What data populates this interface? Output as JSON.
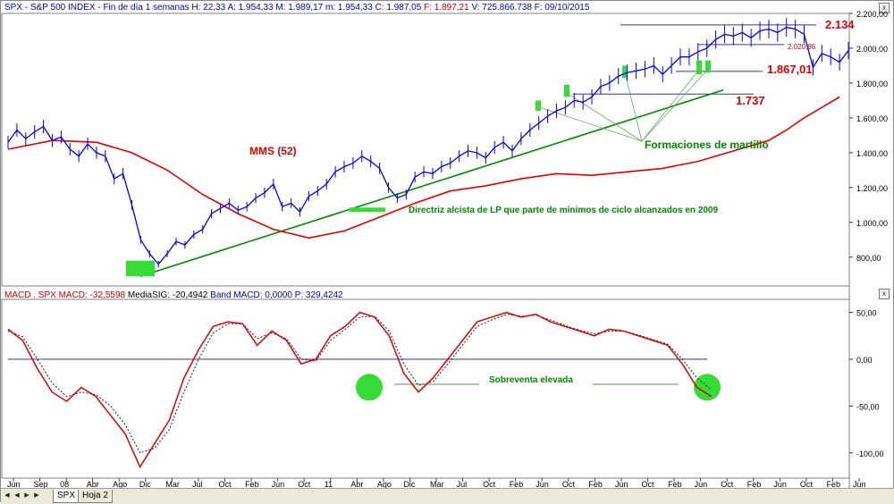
{
  "header_price": {
    "symbol": "SPX",
    "dash": "-",
    "name": "S&P 500 INDEX",
    "period": "- Fin de día 1 semanas",
    "H": "H: 22,33",
    "A": "A: 1.954,33",
    "M": "M: 1.989,17",
    "m": "m: 1.954,33",
    "C": "C: 1.987,05",
    "F": "F: 1.897,21",
    "V": "V: 725.866.738",
    "date": "F: 09/10/2015"
  },
  "header_macd": {
    "name": "MACD",
    "symbol": ". SPX MACD:",
    "macd_val": "-32,5598",
    "sig_label": "MediaSIG:",
    "sig_val": "-20,4942",
    "band_label": "Band",
    "band_macd": "MACD: 0,0000",
    "p_val": "P: 329,4242"
  },
  "tabs": [
    "SPX",
    "Hoja 2"
  ],
  "colors": {
    "price": "#0000ff",
    "ma": "#e00000",
    "trend": "#008a00",
    "highlight": "#33dd33",
    "hline": "#3030c0",
    "macd": "#e00000",
    "signal": "#202020",
    "axis": "#0000aa"
  },
  "chart_data": [
    {
      "type": "line",
      "title": "",
      "ylim": [
        650,
        2200
      ],
      "y_ticks": [
        "2.200,00",
        "2.000,00",
        "1.800,00",
        "1.600,00",
        "1.400,00",
        "1.200,00",
        "1.000,00",
        "800,00"
      ],
      "y_tick_values": [
        2200,
        2000,
        1800,
        1600,
        1400,
        1200,
        1000,
        800
      ],
      "series": [
        {
          "key": "price",
          "x": [
            0,
            1,
            2,
            3,
            4,
            5,
            6,
            7,
            8,
            9,
            10,
            11,
            12,
            13,
            14,
            15,
            16,
            17,
            18,
            19,
            20,
            21,
            22,
            23,
            24,
            25,
            26,
            27,
            28,
            29,
            30,
            31,
            32,
            33,
            34,
            35,
            36,
            37,
            38,
            39,
            40,
            41,
            42,
            43,
            44,
            45,
            46,
            47,
            48,
            49,
            50,
            51,
            52,
            53,
            54,
            55,
            56,
            57,
            58,
            59,
            60,
            61,
            62,
            63,
            64,
            65,
            66,
            67,
            68,
            69,
            70,
            71,
            72,
            73,
            74,
            75,
            76,
            77,
            78,
            79,
            80,
            81,
            82,
            83,
            84,
            85,
            86,
            87,
            88,
            89,
            90,
            91,
            92,
            93,
            94,
            95
          ],
          "values": [
            1460,
            1530,
            1480,
            1520,
            1550,
            1470,
            1490,
            1420,
            1380,
            1450,
            1400,
            1380,
            1250,
            1280,
            1100,
            900,
            820,
            760,
            820,
            890,
            870,
            930,
            960,
            1050,
            1080,
            1110,
            1070,
            1090,
            1140,
            1170,
            1220,
            1090,
            1110,
            1060,
            1150,
            1180,
            1220,
            1290,
            1320,
            1340,
            1380,
            1350,
            1310,
            1200,
            1140,
            1160,
            1260,
            1290,
            1280,
            1320,
            1340,
            1380,
            1410,
            1400,
            1370,
            1430,
            1460,
            1410,
            1480,
            1530,
            1570,
            1610,
            1640,
            1660,
            1700,
            1690,
            1720,
            1780,
            1800,
            1840,
            1860,
            1870,
            1880,
            1900,
            1850,
            1900,
            1950,
            1950,
            1980,
            2000,
            2050,
            2080,
            2070,
            2090,
            2060,
            2100,
            2110,
            2090,
            2120,
            2110,
            2080,
            1890,
            1970,
            1950,
            1920,
            1987
          ]
        },
        {
          "key": "ma",
          "name": "MMS (52)",
          "x": [
            0,
            5,
            10,
            14,
            18,
            22,
            26,
            30,
            34,
            38,
            42,
            46,
            50,
            54,
            58,
            62,
            66,
            70,
            74,
            78,
            82,
            86,
            88,
            90,
            92,
            94
          ],
          "values": [
            1420,
            1470,
            1460,
            1400,
            1300,
            1160,
            1050,
            960,
            910,
            950,
            1030,
            1110,
            1180,
            1210,
            1250,
            1280,
            1270,
            1290,
            1310,
            1350,
            1410,
            1470,
            1530,
            1600,
            1660,
            1720
          ]
        }
      ],
      "annotations": [
        {
          "key": "level_top",
          "text": "2.134",
          "value": 2134
        },
        {
          "key": "level_mid_small",
          "text": "2.020,86",
          "value": 2020.86
        },
        {
          "key": "level_mid",
          "text": "1.867,01",
          "value": 1867.01
        },
        {
          "key": "level_low",
          "text": "1.737",
          "value": 1737
        },
        {
          "key": "ma_label",
          "text": "MMS (52)"
        },
        {
          "key": "hammer_label",
          "text": "Formaciones de martillo"
        },
        {
          "key": "trend_label",
          "text": "Directriz alcista de LP que parte de mínimos de ciclo alcanzados en 2009"
        }
      ]
    },
    {
      "type": "line",
      "title": "",
      "ylim": [
        -125,
        62
      ],
      "y_ticks": [
        "50,00",
        "0,00",
        "-50,00",
        "-100,00"
      ],
      "y_tick_values": [
        50,
        0,
        -50,
        -100
      ],
      "series": [
        {
          "key": "macd",
          "x": [
            0,
            2,
            4,
            6,
            8,
            10,
            12,
            14,
            16,
            18,
            20,
            22,
            24,
            26,
            28,
            30,
            32,
            34,
            36,
            38,
            40,
            42,
            44,
            46,
            48,
            50,
            52,
            54,
            56,
            58,
            60,
            62,
            64,
            66,
            68,
            70,
            72,
            74,
            76,
            78,
            80,
            82,
            84,
            86,
            88,
            90,
            92,
            94,
            96
          ],
          "values": [
            32,
            20,
            -10,
            -35,
            -45,
            -30,
            -40,
            -60,
            -80,
            -115,
            -90,
            -65,
            -20,
            10,
            35,
            40,
            38,
            15,
            30,
            20,
            -5,
            0,
            25,
            35,
            50,
            45,
            25,
            -15,
            -35,
            -20,
            0,
            20,
            40,
            45,
            50,
            45,
            48,
            40,
            35,
            30,
            25,
            32,
            30,
            25,
            20,
            15,
            -5,
            -30,
            -40
          ]
        },
        {
          "key": "signal",
          "x": [
            0,
            2,
            4,
            6,
            8,
            10,
            12,
            14,
            16,
            18,
            20,
            22,
            24,
            26,
            28,
            30,
            32,
            34,
            36,
            38,
            40,
            42,
            44,
            46,
            48,
            50,
            52,
            54,
            56,
            58,
            60,
            62,
            64,
            66,
            68,
            70,
            72,
            74,
            76,
            78,
            80,
            82,
            84,
            86,
            88,
            90,
            92,
            94,
            96
          ],
          "values": [
            30,
            24,
            0,
            -25,
            -40,
            -35,
            -38,
            -50,
            -70,
            -100,
            -95,
            -75,
            -35,
            0,
            28,
            38,
            38,
            22,
            28,
            22,
            0,
            -2,
            20,
            32,
            45,
            46,
            30,
            -5,
            -28,
            -24,
            -5,
            15,
            35,
            42,
            48,
            46,
            47,
            42,
            36,
            31,
            27,
            30,
            30,
            26,
            21,
            16,
            0,
            -20,
            -33
          ]
        }
      ],
      "annotations": [
        {
          "key": "oversold_label",
          "text": "Sobreventa elevada"
        }
      ]
    }
  ],
  "x_axis_labels": [
    "Jun",
    "Sep",
    "08",
    "Abr",
    "Ago",
    "Dic",
    "Mar",
    "Jul",
    "Oct",
    "Feb",
    "Jun",
    "Oct",
    "11",
    "Abr",
    "Ago",
    "Dic",
    "Mar",
    "Jul",
    "Oct",
    "Feb",
    "Jun",
    "Oct",
    "Feb",
    "Jun",
    "Oct",
    "Feb",
    "Jun",
    "Oct",
    "Feb",
    "Jun",
    "Oct",
    "Feb",
    "Jun"
  ],
  "pane_close": "x"
}
